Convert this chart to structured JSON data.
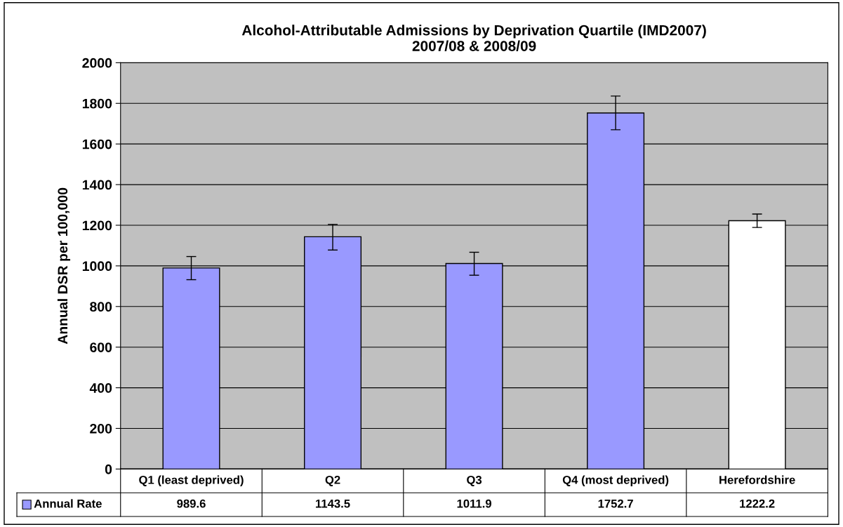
{
  "chart_data": {
    "type": "bar",
    "title": "Alcohol-Attributable Admissions by Deprivation Quartile (IMD2007)\n2007/08 & 2008/09",
    "ylabel": "Annual DSR per 100,000",
    "categories": [
      "Q1 (least deprived)",
      "Q2",
      "Q3",
      "Q4 (most deprived)",
      "Herefordshire"
    ],
    "series": [
      {
        "name": "Annual Rate",
        "color": "#9999ff",
        "colors": [
          "#9999ff",
          "#9999ff",
          "#9999ff",
          "#9999ff",
          "#ffffff"
        ],
        "values": [
          989.6,
          1143.5,
          1011.9,
          1752.7,
          1222.2
        ],
        "errors": [
          [
            932,
            1046
          ],
          [
            1078,
            1204
          ],
          [
            954,
            1067
          ],
          [
            1670,
            1836
          ],
          [
            1189,
            1255
          ]
        ]
      }
    ],
    "data_labels": true,
    "ylim": [
      0,
      2000
    ],
    "yticks": [
      0,
      200,
      400,
      600,
      800,
      1000,
      1200,
      1400,
      1600,
      1800,
      2000
    ],
    "grid": "y",
    "legend": "bottom"
  }
}
